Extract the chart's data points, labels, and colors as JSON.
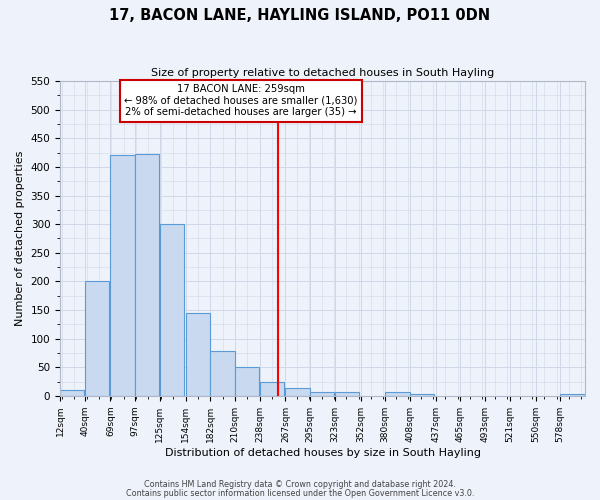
{
  "title": "17, BACON LANE, HAYLING ISLAND, PO11 0DN",
  "subtitle": "Size of property relative to detached houses in South Hayling",
  "xlabel": "Distribution of detached houses by size in South Hayling",
  "ylabel": "Number of detached properties",
  "bin_labels": [
    "12sqm",
    "40sqm",
    "69sqm",
    "97sqm",
    "125sqm",
    "154sqm",
    "182sqm",
    "210sqm",
    "238sqm",
    "267sqm",
    "295sqm",
    "323sqm",
    "352sqm",
    "380sqm",
    "408sqm",
    "437sqm",
    "465sqm",
    "493sqm",
    "521sqm",
    "550sqm",
    "578sqm"
  ],
  "bar_heights": [
    10,
    200,
    420,
    422,
    300,
    145,
    78,
    50,
    25,
    13,
    7,
    6,
    0,
    7,
    3,
    0,
    0,
    0,
    0,
    0,
    4
  ],
  "bar_color": "#c8d9f0",
  "bar_edgecolor": "#5b9bd5",
  "vline_x": 259,
  "xlim_min": 12,
  "xlim_max": 606,
  "ylim_min": 0,
  "ylim_max": 550,
  "bin_width": 28,
  "annotation_title": "17 BACON LANE: 259sqm",
  "annotation_line1": "← 98% of detached houses are smaller (1,630)",
  "annotation_line2": "2% of semi-detached houses are larger (35) →",
  "annotation_box_edgecolor": "#cc0000",
  "footnote1": "Contains HM Land Registry data © Crown copyright and database right 2024.",
  "footnote2": "Contains public sector information licensed under the Open Government Licence v3.0.",
  "grid_color": "#d0d8e8",
  "background_color": "#eef2fa",
  "yticks": [
    0,
    50,
    100,
    150,
    200,
    250,
    300,
    350,
    400,
    450,
    500,
    550
  ]
}
